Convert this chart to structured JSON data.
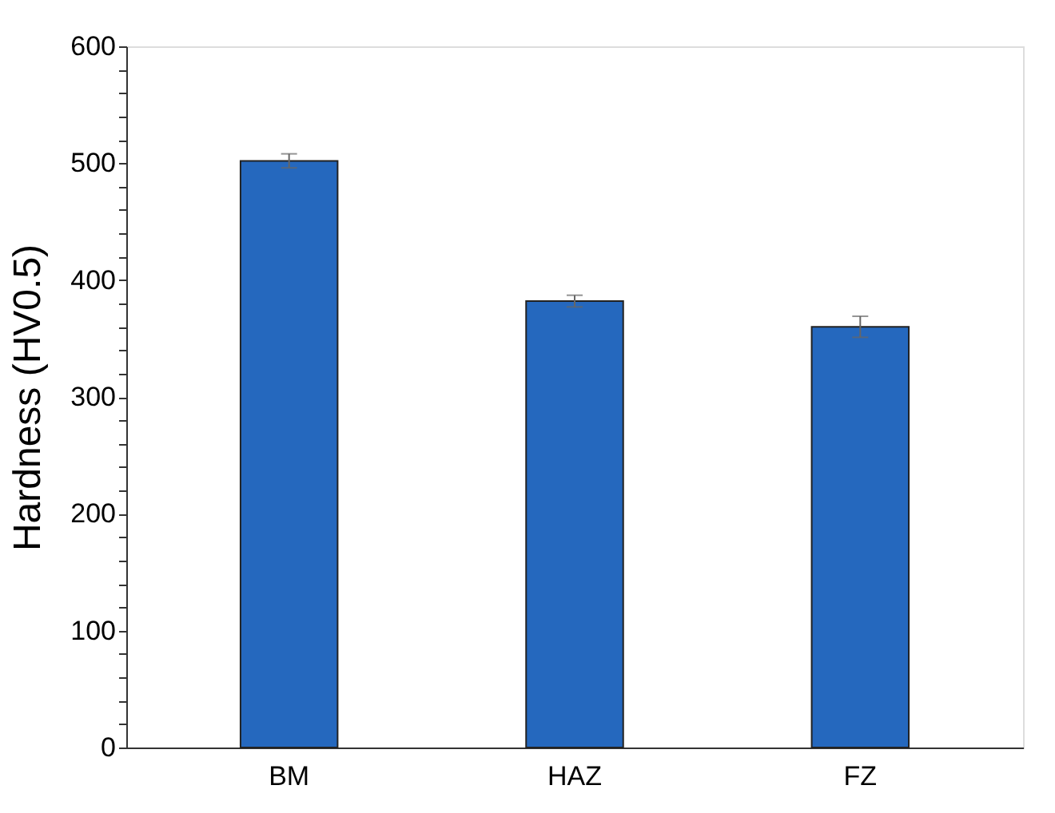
{
  "chart_data": {
    "type": "bar",
    "ylabel": "Hardness (HV0.5)",
    "categories": [
      "BM",
      "HAZ",
      "FZ"
    ],
    "values": [
      502,
      382,
      360
    ],
    "errors": [
      6,
      5,
      9
    ],
    "color": "#2568be",
    "ylim": [
      0,
      600
    ],
    "yticks": [
      0,
      {
        "value": 20,
        "label": null
      },
      {
        "value": 40,
        "label": null
      },
      {
        "value": 60,
        "label": null
      },
      {
        "value": 80,
        "label": null
      },
      100,
      {
        "value": 120,
        "label": null
      },
      {
        "value": 140,
        "label": null
      },
      {
        "value": 160,
        "label": null
      },
      {
        "value": 180,
        "label": null
      },
      200,
      {
        "value": 220,
        "label": null
      },
      {
        "value": 240,
        "label": null
      },
      {
        "value": 260,
        "label": null
      },
      {
        "value": 280,
        "label": null
      },
      300,
      {
        "value": 320,
        "label": null
      },
      {
        "value": 340,
        "label": null
      },
      {
        "value": 360,
        "label": null
      },
      {
        "value": 380,
        "label": null
      },
      400,
      {
        "value": 420,
        "label": null
      },
      {
        "value": 440,
        "label": null
      },
      {
        "value": 460,
        "label": null
      },
      {
        "value": 480,
        "label": null
      },
      500,
      {
        "value": 520,
        "label": null
      },
      {
        "value": 540,
        "label": null
      },
      {
        "value": 560,
        "label": null
      },
      {
        "value": 580,
        "label": null
      },
      600
    ],
    "grid": false
  }
}
